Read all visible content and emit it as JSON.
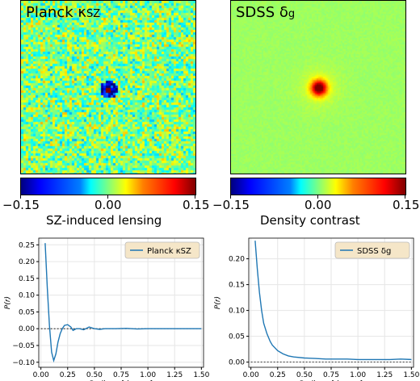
{
  "maps": [
    {
      "title": "Planck κ",
      "title_sub": "SZ",
      "colorbar_ticks": [
        "−0.15",
        "0.00",
        "0.15"
      ],
      "colorbar_label": "SZ-induced lensing"
    },
    {
      "title": "SDSS δ",
      "title_sub": "g",
      "colorbar_ticks": [
        "−0.15",
        "0.00",
        "0.15"
      ],
      "colorbar_label": "Density contrast"
    }
  ],
  "colors": {
    "line": "#1f77b4",
    "legend_bg": "#f5e6c8",
    "map_bg": "#a9e97a"
  },
  "chart_data": [
    {
      "type": "line",
      "title": "",
      "xlabel": "Radius r [degree]",
      "ylabel": "P(r)",
      "xlim": [
        -0.02,
        1.52
      ],
      "ylim": [
        -0.115,
        0.27
      ],
      "xticks": [
        "0.00",
        "0.25",
        "0.50",
        "0.75",
        "1.00",
        "1.25",
        "1.50"
      ],
      "yticks": [
        "−0.10",
        "−0.05",
        "0.00",
        "0.05",
        "0.10",
        "0.15",
        "0.20",
        "0.25"
      ],
      "legend": "top-right",
      "grid": true,
      "series": [
        {
          "name": "Planck κSZ",
          "x": [
            0.04,
            0.06,
            0.08,
            0.1,
            0.12,
            0.14,
            0.16,
            0.18,
            0.2,
            0.22,
            0.25,
            0.28,
            0.3,
            0.33,
            0.36,
            0.4,
            0.45,
            0.5,
            0.55,
            0.6,
            0.7,
            0.8,
            0.9,
            1.0,
            1.1,
            1.2,
            1.3,
            1.4,
            1.5
          ],
          "y": [
            0.255,
            0.12,
            0.01,
            -0.07,
            -0.095,
            -0.075,
            -0.04,
            -0.015,
            0.0,
            0.01,
            0.012,
            0.005,
            -0.005,
            0.0,
            0.0,
            -0.003,
            0.005,
            0.0,
            -0.002,
            0.0,
            0.0,
            0.001,
            -0.001,
            0.0,
            0.0,
            0.0,
            0.0,
            0.0,
            0.0
          ]
        }
      ],
      "reference_line": 0.0
    },
    {
      "type": "line",
      "title": "",
      "xlabel": "Radius r [degree]",
      "ylabel": "P(r)",
      "xlim": [
        -0.02,
        1.52
      ],
      "ylim": [
        -0.01,
        0.24
      ],
      "xticks": [
        "0.00",
        "0.25",
        "0.50",
        "0.75",
        "1.00",
        "1.25",
        "1.50"
      ],
      "yticks": [
        "0.00",
        "0.05",
        "0.10",
        "0.15",
        "0.20"
      ],
      "legend": "top-right",
      "grid": true,
      "series": [
        {
          "name": "SDSS δg",
          "x": [
            0.04,
            0.06,
            0.08,
            0.1,
            0.12,
            0.15,
            0.18,
            0.2,
            0.25,
            0.3,
            0.35,
            0.4,
            0.5,
            0.6,
            0.7,
            0.8,
            0.9,
            1.0,
            1.1,
            1.2,
            1.3,
            1.4,
            1.5
          ],
          "y": [
            0.235,
            0.18,
            0.135,
            0.1,
            0.075,
            0.055,
            0.04,
            0.033,
            0.022,
            0.016,
            0.012,
            0.01,
            0.008,
            0.007,
            0.006,
            0.006,
            0.006,
            0.005,
            0.005,
            0.005,
            0.005,
            0.006,
            0.005
          ]
        }
      ],
      "reference_line": 0.0
    }
  ]
}
